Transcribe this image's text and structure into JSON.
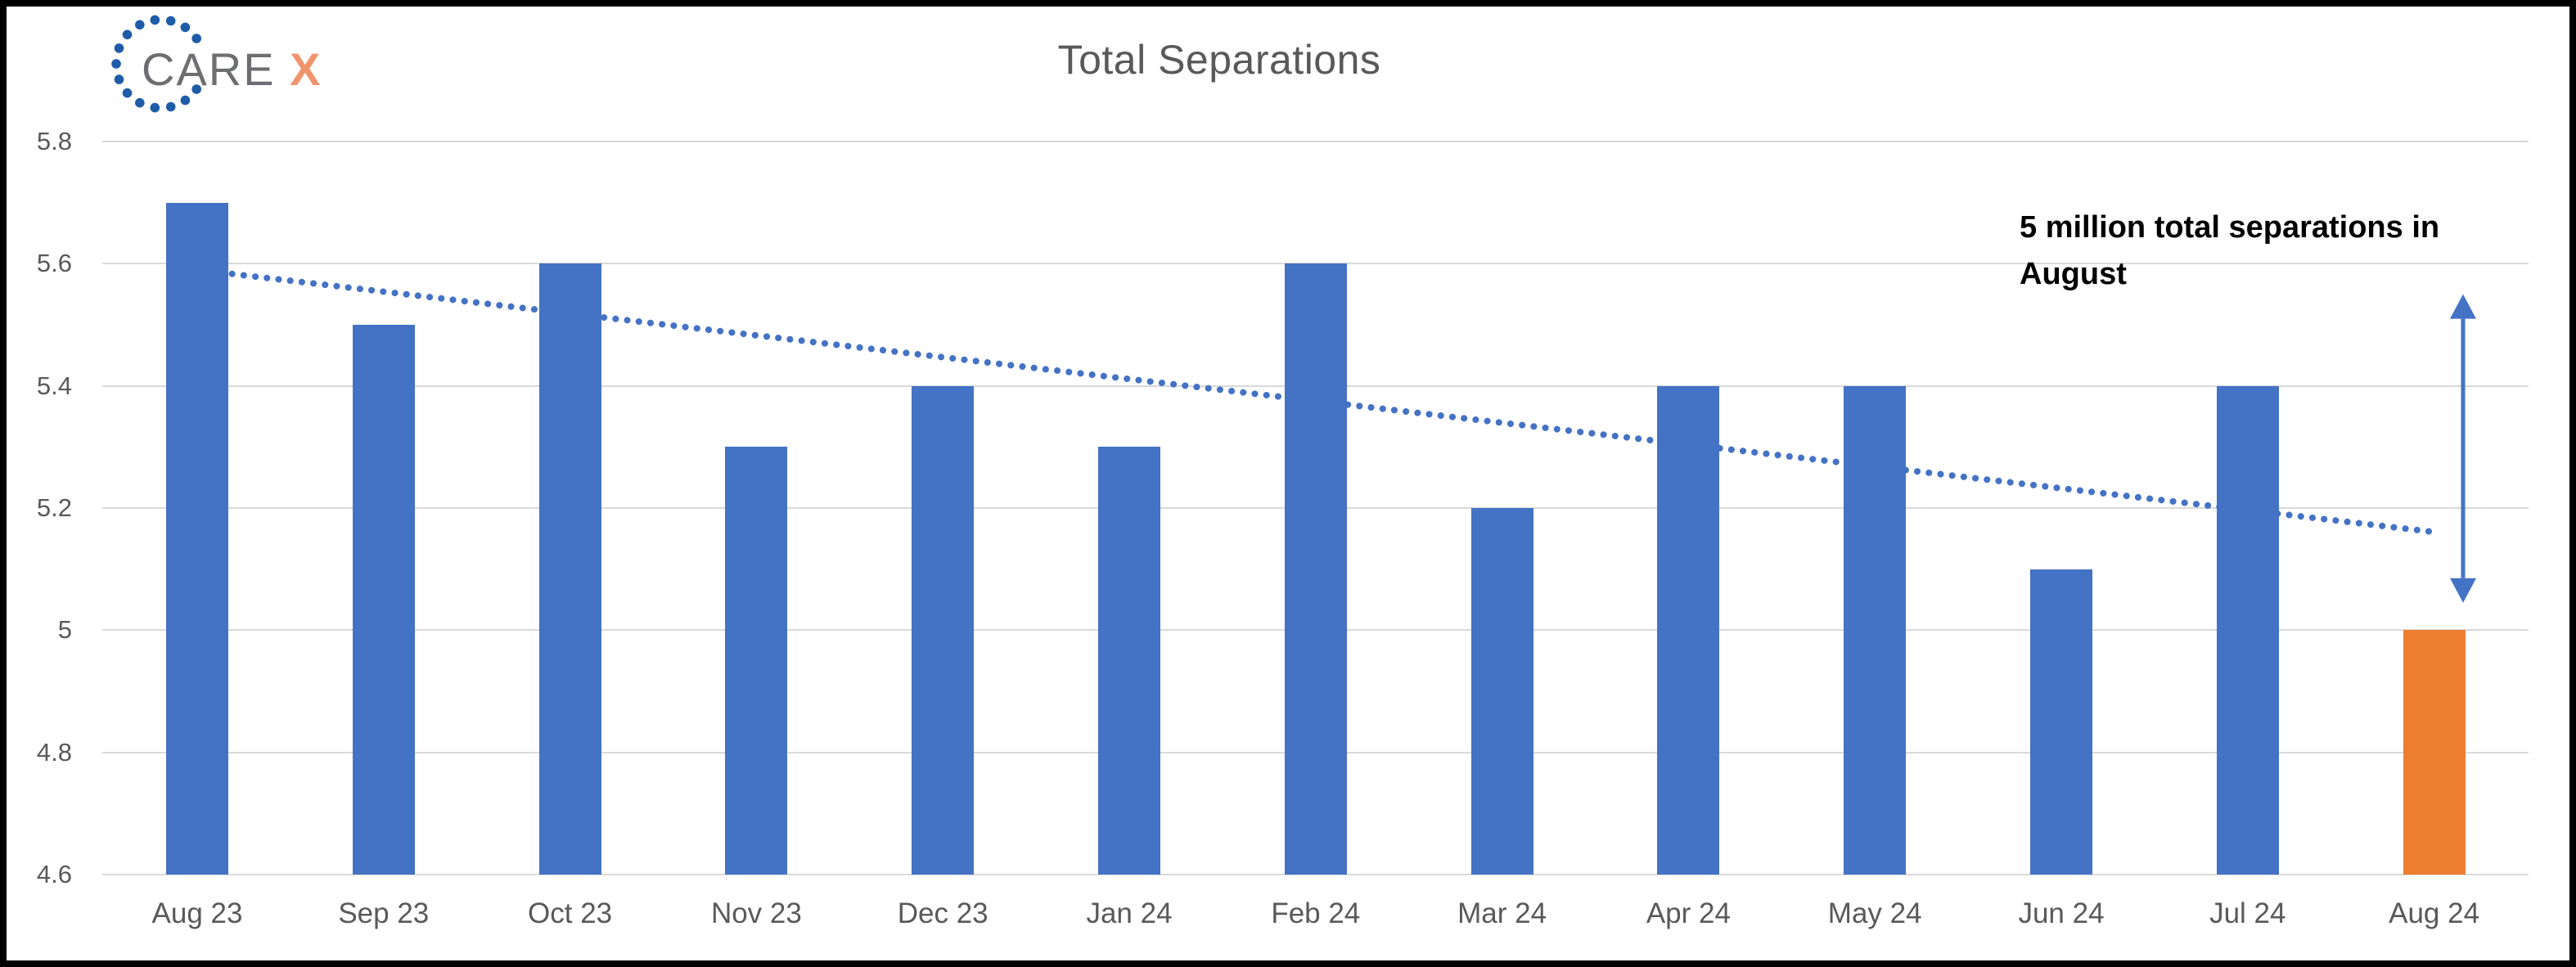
{
  "logo": {
    "text_gray": "CARE",
    "text_accent": "X",
    "gray_color": "#6d6e71",
    "accent_color": "#f0946b",
    "dot_color": "#1e5ca8"
  },
  "title": {
    "text": "Total Separations",
    "color": "#595959"
  },
  "annotation": {
    "line1": "5 million total separations in",
    "line2": "August",
    "color": "#000000"
  },
  "chart_data": {
    "type": "bar",
    "title": "Total Separations",
    "categories": [
      "Aug 23",
      "Sep 23",
      "Oct 23",
      "Nov 23",
      "Dec 23",
      "Jan 24",
      "Feb 24",
      "Mar 24",
      "Apr 24",
      "May 24",
      "Jun 24",
      "Jul 24",
      "Aug 24"
    ],
    "values": [
      5.7,
      5.5,
      5.6,
      5.3,
      5.4,
      5.3,
      5.6,
      5.2,
      5.4,
      5.4,
      5.1,
      5.4,
      5.0
    ],
    "unit": "millions of separations",
    "xlabel": "",
    "ylabel": "",
    "ylim": [
      4.6,
      5.8
    ],
    "yticks": [
      {
        "label": "5.8",
        "value": 5.8
      },
      {
        "label": "5.6",
        "value": 5.6
      },
      {
        "label": "5.4",
        "value": 5.4
      },
      {
        "label": "5.2",
        "value": 5.2
      },
      {
        "label": "5",
        "value": 5.0
      },
      {
        "label": "4.8",
        "value": 4.8
      },
      {
        "label": "4.6",
        "value": 4.6
      }
    ],
    "grid": true,
    "legend": false,
    "bar_color": "#4472c4",
    "highlight_index": 12,
    "highlight_color": "#ed7d31",
    "gridline_color": "#d9d9d9",
    "axis_text_color": "#595959",
    "trendline": {
      "style": "dotted",
      "color": "#4472c4",
      "start_category": "Aug 23",
      "start_value": 5.59,
      "end_category": "Aug 24",
      "end_value": 5.16
    },
    "arrow_annotation": {
      "shape": "vertical-double-arrow",
      "color": "#4472c4",
      "near_category": "Aug 24",
      "from_value": 5.55,
      "to_value": 5.045
    }
  }
}
